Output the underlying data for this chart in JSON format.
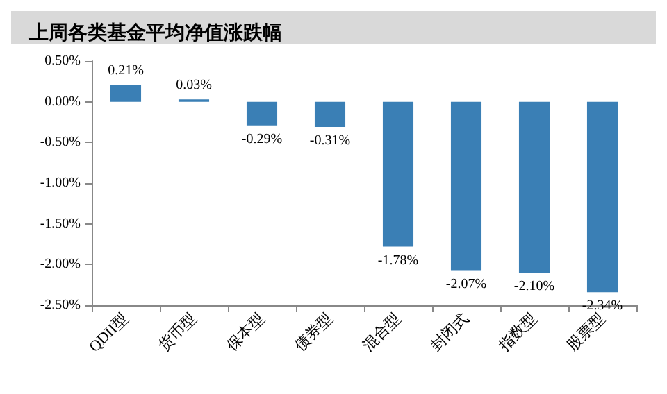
{
  "chart_data": {
    "type": "bar",
    "title": "上周各类基金平均净值涨跌幅",
    "categories": [
      "QDII型",
      "货币型",
      "保本型",
      "债券型",
      "混合型",
      "封闭式",
      "指数型",
      "股票型"
    ],
    "values": [
      0.21,
      0.03,
      -0.29,
      -0.31,
      -1.78,
      -2.07,
      -2.1,
      -2.34
    ],
    "value_labels": [
      "0.21%",
      "0.03%",
      "-0.29%",
      "-0.31%",
      "-1.78%",
      "-2.07%",
      "-2.10%",
      "-2.34%"
    ],
    "color": "#3a7fb5",
    "ylim": [
      -2.5,
      0.5
    ],
    "yticks": [
      {
        "value": 0.5,
        "label": "0.50%"
      },
      {
        "value": 0,
        "label": "0.00%"
      },
      {
        "value": -0.5,
        "label": "-0.50%"
      },
      {
        "value": -1,
        "label": "-1.00%"
      },
      {
        "value": -1.5,
        "label": "-1.50%"
      },
      {
        "value": -2,
        "label": "-2.00%"
      },
      {
        "value": -2.5,
        "label": "-2.50%"
      }
    ],
    "grid": false
  }
}
